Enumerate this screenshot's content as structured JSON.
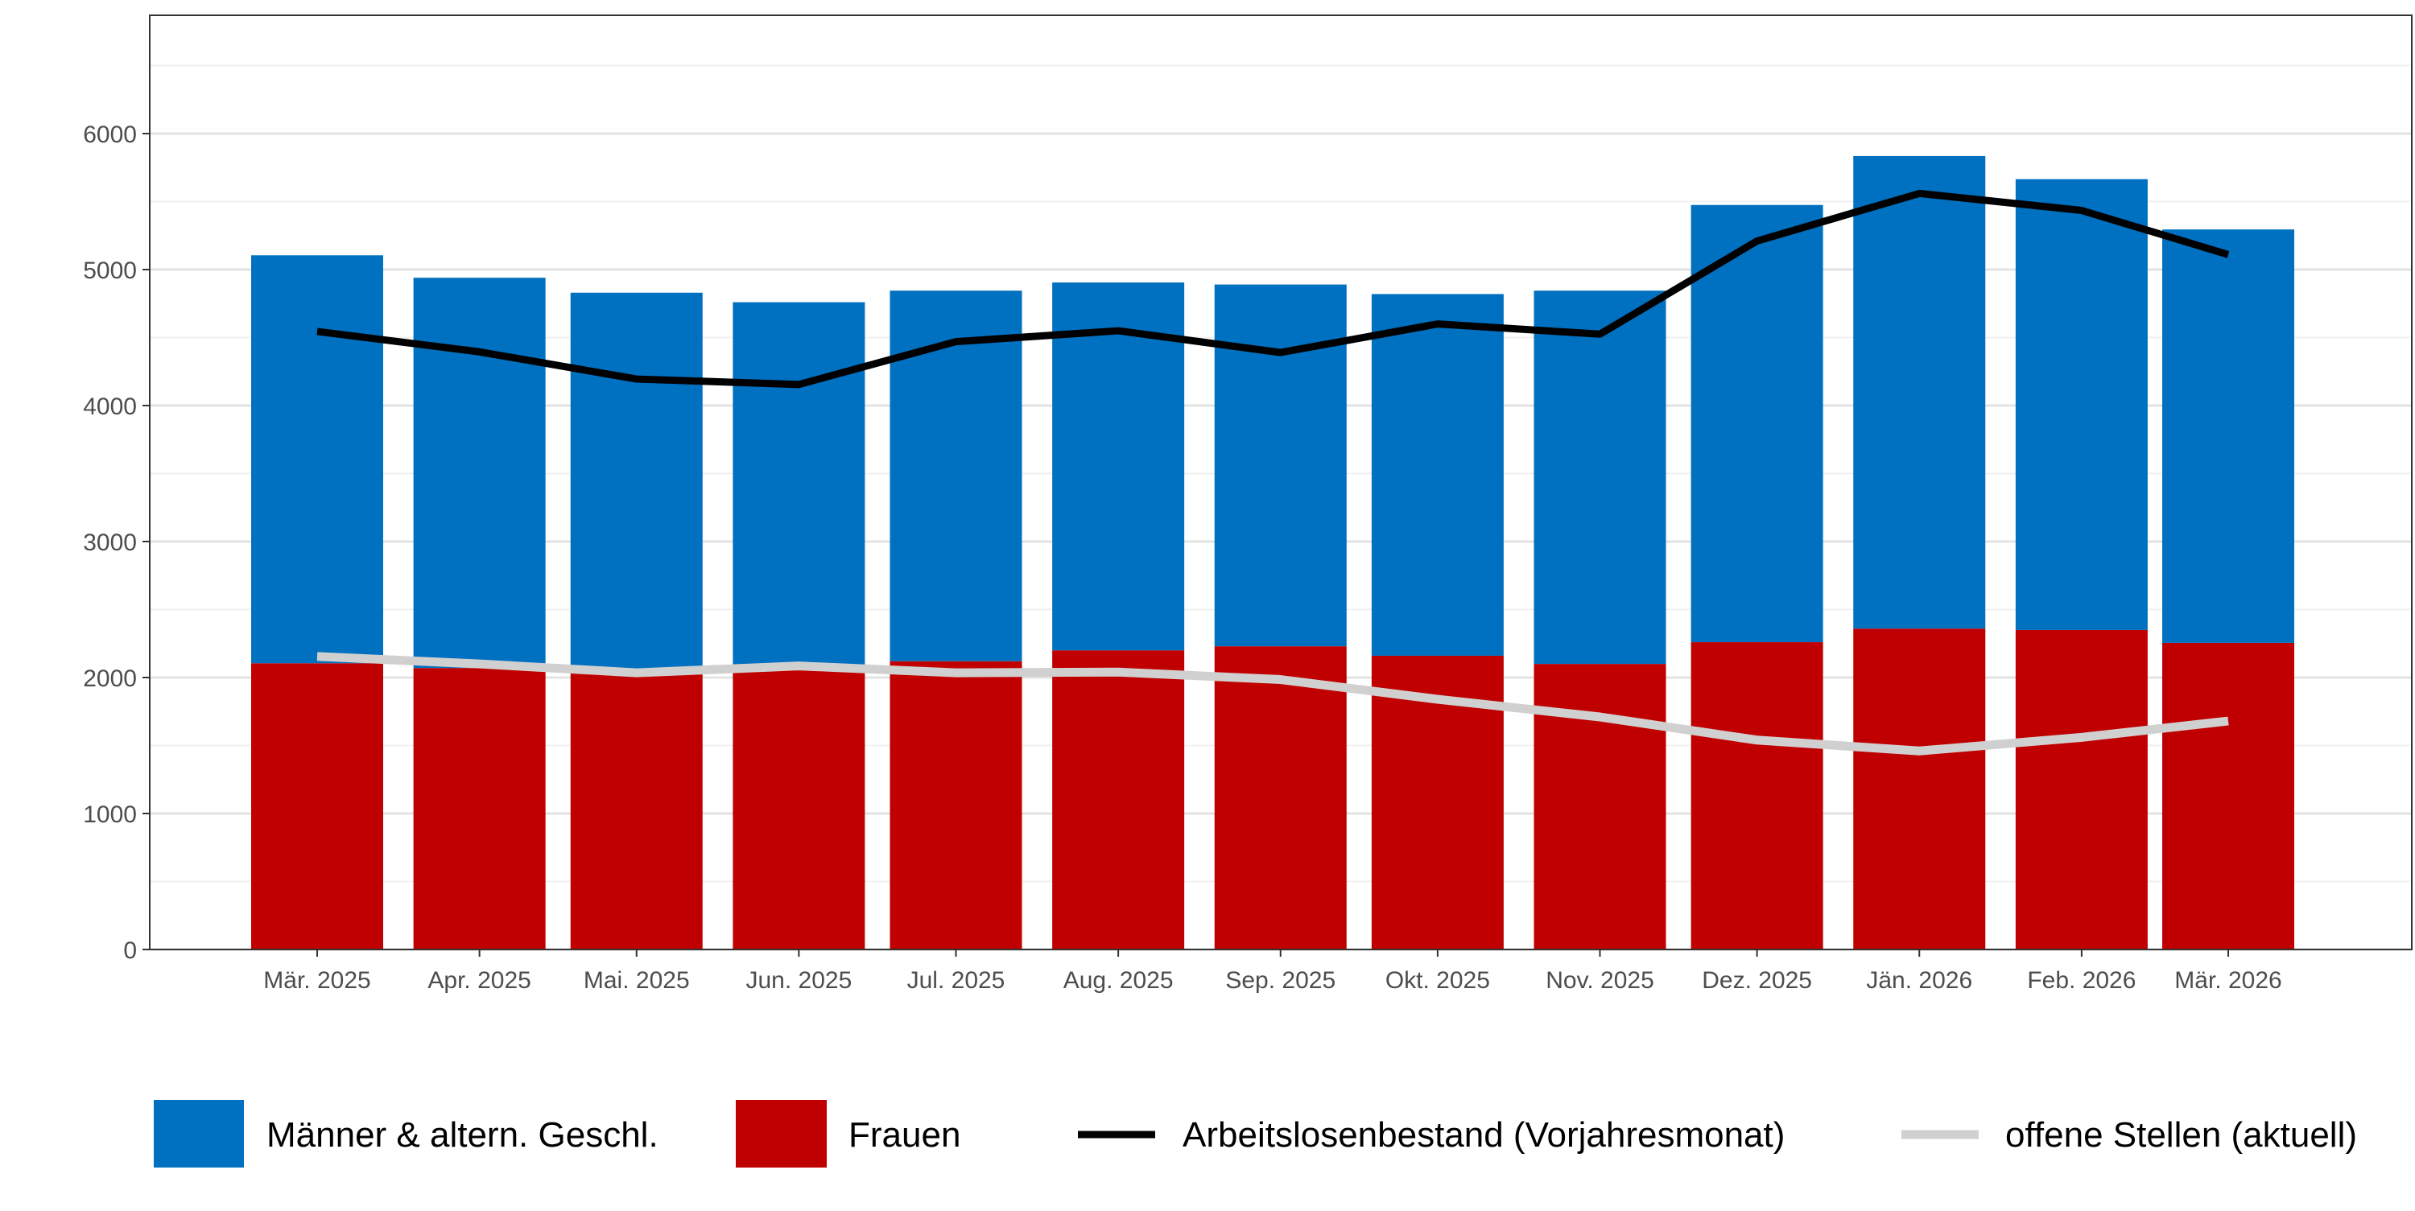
{
  "chart_data": {
    "type": "bar",
    "stacked": true,
    "categories": [
      "Mär. 2025",
      "Apr. 2025",
      "Mai. 2025",
      "Jun. 2025",
      "Jul. 2025",
      "Aug. 2025",
      "Sep. 2025",
      "Okt. 2025",
      "Nov. 2025",
      "Dez. 2025",
      "Jän. 2026",
      "Feb. 2026",
      "Mär. 2026"
    ],
    "dates": [
      "2025-03-01",
      "2025-04-01",
      "2025-05-01",
      "2025-06-01",
      "2025-07-01",
      "2025-08-01",
      "2025-09-01",
      "2025-10-01",
      "2025-11-01",
      "2025-12-01",
      "2026-01-01",
      "2026-02-01",
      "2026-03-01"
    ],
    "series": [
      {
        "name": "Männer & altern. Geschl.",
        "kind": "bar",
        "color": "#0070C0",
        "values": [
          3000,
          2870,
          2800,
          2705,
          2725,
          2705,
          2660,
          2660,
          2745,
          3215,
          3475,
          3315,
          3040
        ]
      },
      {
        "name": "Frauen",
        "kind": "bar",
        "color": "#C00000",
        "values": [
          2105,
          2070,
          2030,
          2055,
          2120,
          2200,
          2230,
          2160,
          2100,
          2260,
          2360,
          2350,
          2255
        ]
      },
      {
        "name": "Arbeitslosenbestand (Vorjahresmonat)",
        "kind": "line",
        "color": "#000000",
        "values": [
          4545,
          4395,
          4195,
          4155,
          4470,
          4550,
          4390,
          4600,
          4525,
          5210,
          5560,
          5435,
          5110
        ]
      },
      {
        "name": "offene Stellen (aktuell)",
        "kind": "line",
        "color": "#D0D0D0",
        "values": [
          2155,
          2100,
          2035,
          2085,
          2035,
          2040,
          1985,
          1840,
          1710,
          1540,
          1460,
          1560,
          1680
        ]
      }
    ],
    "y_ticks": [
      "0",
      "1000",
      "2000",
      "3000",
      "4000",
      "5000",
      "6000"
    ],
    "ylim": [
      0,
      6870
    ],
    "xlabel": "",
    "ylabel": "",
    "grid": true,
    "legend_position": "bottom"
  }
}
